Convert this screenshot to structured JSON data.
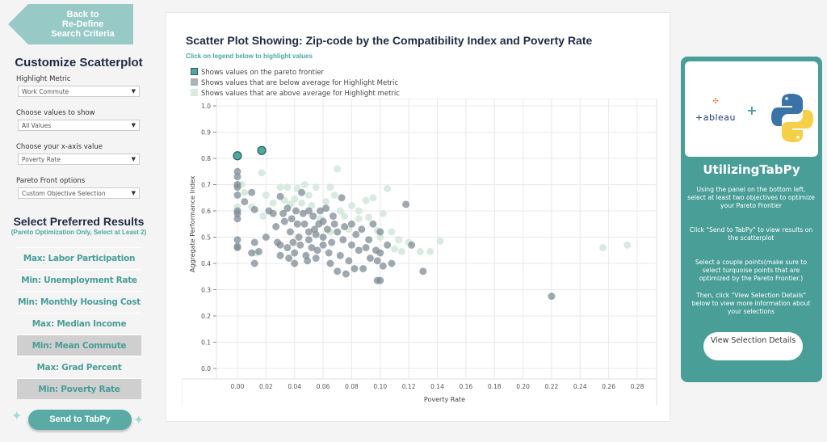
{
  "back_button": {
    "label": "Back to Re-Define Search Criteria",
    "lines": [
      "Back to",
      "Re-Define",
      "Search Criteria"
    ]
  },
  "customize": {
    "title": "Customize Scatterplot",
    "filters": [
      {
        "label": "Highlight Metric",
        "value": "Work Commute"
      },
      {
        "label": "Choose values to show",
        "value": "All Values"
      },
      {
        "label": "Choose your x-axis value",
        "value": "Poverty Rate"
      },
      {
        "label": "Pareto Front options",
        "value": "Custom Objective Selection"
      }
    ]
  },
  "preferred": {
    "title": "Select Preferred Results",
    "subtitle": "(Pareto Optimization Only, Select at Least 2)",
    "options": [
      {
        "label": "Max: Labor Participation",
        "selected": false
      },
      {
        "label": "Min: Unemployment Rate",
        "selected": false
      },
      {
        "label": "Min: Monthly Housing Cost",
        "selected": false
      },
      {
        "label": "Max: Median Income",
        "selected": false
      },
      {
        "label": "Min: Mean Commute",
        "selected": true
      },
      {
        "label": "Max: Grad Percent",
        "selected": false
      },
      {
        "label": "Min: Poverty Rate",
        "selected": true
      }
    ]
  },
  "send_button": "Send to TabPy",
  "chart": {
    "title": "Scatter Plot Showing: Zip-code by the Compatibility Index and Poverty Rate",
    "hint": "Click on legend below to highlight values",
    "legend": [
      {
        "label": "Shows values on the pareto frontier",
        "color": "#4fa8a0"
      },
      {
        "label": "Shows values that are below average for Highlight Metric",
        "color": "#a9b2b9"
      },
      {
        "label": "Shows values that are above average for Highlight metric",
        "color": "#d9ebe1"
      }
    ]
  },
  "chart_data": {
    "type": "scatter",
    "xlabel": "Poverty Rate",
    "ylabel": "Aggregate Performance Index",
    "xlim": [
      -0.015,
      0.293
    ],
    "ylim": [
      0,
      1.0
    ],
    "grid": true,
    "xticks": [
      "0.00",
      "0.02",
      "0.04",
      "0.06",
      "0.08",
      "0.10",
      "0.12",
      "0.14",
      "0.16",
      "0.18",
      "0.20",
      "0.22",
      "0.24",
      "0.26",
      "0.28"
    ],
    "yticks": [
      "0.0",
      "0.1",
      "0.2",
      "0.3",
      "0.4",
      "0.5",
      "0.6",
      "0.7",
      "0.8",
      "0.9",
      "1.0"
    ],
    "series": [
      {
        "name": "Shows values that are above average for Highlight metric",
        "color": "#cfe6da",
        "points": [
          [
            0.0,
            0.7
          ],
          [
            0.0,
            0.615
          ],
          [
            0.003,
            0.7
          ],
          [
            0.005,
            0.67
          ],
          [
            0.01,
            0.615
          ],
          [
            0.013,
            0.44
          ],
          [
            0.017,
            0.745
          ],
          [
            0.018,
            0.58
          ],
          [
            0.02,
            0.66
          ],
          [
            0.025,
            0.63
          ],
          [
            0.03,
            0.69
          ],
          [
            0.033,
            0.64
          ],
          [
            0.035,
            0.69
          ],
          [
            0.037,
            0.625
          ],
          [
            0.04,
            0.645
          ],
          [
            0.042,
            0.685
          ],
          [
            0.045,
            0.63
          ],
          [
            0.047,
            0.7
          ],
          [
            0.05,
            0.66
          ],
          [
            0.052,
            0.62
          ],
          [
            0.055,
            0.69
          ],
          [
            0.058,
            0.57
          ],
          [
            0.062,
            0.635
          ],
          [
            0.065,
            0.69
          ],
          [
            0.068,
            0.66
          ],
          [
            0.07,
            0.76
          ],
          [
            0.072,
            0.6
          ],
          [
            0.075,
            0.58
          ],
          [
            0.078,
            0.53
          ],
          [
            0.08,
            0.62
          ],
          [
            0.085,
            0.57
          ],
          [
            0.09,
            0.64
          ],
          [
            0.092,
            0.575
          ],
          [
            0.095,
            0.65
          ],
          [
            0.098,
            0.525
          ],
          [
            0.1,
            0.5
          ],
          [
            0.102,
            0.59
          ],
          [
            0.105,
            0.685
          ],
          [
            0.11,
            0.455
          ],
          [
            0.113,
            0.49
          ],
          [
            0.115,
            0.445
          ],
          [
            0.12,
            0.48
          ],
          [
            0.128,
            0.445
          ],
          [
            0.135,
            0.445
          ],
          [
            0.142,
            0.485
          ],
          [
            0.108,
            0.52
          ],
          [
            0.256,
            0.46
          ],
          [
            0.273,
            0.47
          ],
          [
            0.085,
            0.6
          ],
          [
            0.065,
            0.52
          ]
        ]
      },
      {
        "name": "Shows values that are below average for Highlight Metric",
        "color": "#7f8c94",
        "points": [
          [
            0,
            0.75
          ],
          [
            0,
            0.73
          ],
          [
            0,
            0.7
          ],
          [
            0,
            0.69
          ],
          [
            0,
            0.66
          ],
          [
            0,
            0.6
          ],
          [
            0,
            0.59
          ],
          [
            0,
            0.57
          ],
          [
            0,
            0.49
          ],
          [
            0,
            0.465
          ],
          [
            0,
            0.46
          ],
          [
            0.005,
            0.635
          ],
          [
            0.01,
            0.67
          ],
          [
            0.01,
            0.44
          ],
          [
            0.012,
            0.605
          ],
          [
            0.012,
            0.48
          ],
          [
            0.012,
            0.4
          ],
          [
            0.015,
            0.445
          ],
          [
            0.02,
            0.5
          ],
          [
            0.022,
            0.6
          ],
          [
            0.025,
            0.59
          ],
          [
            0.027,
            0.54
          ],
          [
            0.028,
            0.48
          ],
          [
            0.03,
            0.655
          ],
          [
            0.03,
            0.47
          ],
          [
            0.03,
            0.43
          ],
          [
            0.032,
            0.59
          ],
          [
            0.033,
            0.56
          ],
          [
            0.035,
            0.61
          ],
          [
            0.035,
            0.46
          ],
          [
            0.036,
            0.42
          ],
          [
            0.037,
            0.52
          ],
          [
            0.038,
            0.57
          ],
          [
            0.039,
            0.48
          ],
          [
            0.04,
            0.44
          ],
          [
            0.04,
            0.4
          ],
          [
            0.041,
            0.6
          ],
          [
            0.042,
            0.55
          ],
          [
            0.043,
            0.5
          ],
          [
            0.044,
            0.47
          ],
          [
            0.045,
            0.67
          ],
          [
            0.046,
            0.59
          ],
          [
            0.047,
            0.55
          ],
          [
            0.048,
            0.43
          ],
          [
            0.049,
            0.41
          ],
          [
            0.05,
            0.6
          ],
          [
            0.05,
            0.52
          ],
          [
            0.05,
            0.49
          ],
          [
            0.052,
            0.46
          ],
          [
            0.053,
            0.58
          ],
          [
            0.054,
            0.53
          ],
          [
            0.055,
            0.51
          ],
          [
            0.055,
            0.42
          ],
          [
            0.056,
            0.45
          ],
          [
            0.057,
            0.55
          ],
          [
            0.058,
            0.6
          ],
          [
            0.06,
            0.56
          ],
          [
            0.06,
            0.5
          ],
          [
            0.06,
            0.47
          ],
          [
            0.062,
            0.61
          ],
          [
            0.063,
            0.53
          ],
          [
            0.064,
            0.44
          ],
          [
            0.065,
            0.4
          ],
          [
            0.066,
            0.48
          ],
          [
            0.067,
            0.58
          ],
          [
            0.068,
            0.55
          ],
          [
            0.07,
            0.52
          ],
          [
            0.07,
            0.37
          ],
          [
            0.072,
            0.43
          ],
          [
            0.073,
            0.65
          ],
          [
            0.074,
            0.49
          ],
          [
            0.075,
            0.54
          ],
          [
            0.076,
            0.36
          ],
          [
            0.078,
            0.41
          ],
          [
            0.08,
            0.55
          ],
          [
            0.08,
            0.47
          ],
          [
            0.082,
            0.38
          ],
          [
            0.083,
            0.51
          ],
          [
            0.085,
            0.45
          ],
          [
            0.087,
            0.53
          ],
          [
            0.088,
            0.38
          ],
          [
            0.09,
            0.46
          ],
          [
            0.092,
            0.49
          ],
          [
            0.093,
            0.42
          ],
          [
            0.095,
            0.55
          ],
          [
            0.097,
            0.45
          ],
          [
            0.098,
            0.41
          ],
          [
            0.1,
            0.52
          ],
          [
            0.1,
            0.44
          ],
          [
            0.102,
            0.39
          ],
          [
            0.098,
            0.335
          ],
          [
            0.1,
            0.335
          ],
          [
            0.105,
            0.47
          ],
          [
            0.108,
            0.4
          ],
          [
            0.118,
            0.625
          ],
          [
            0.122,
            0.47
          ],
          [
            0.13,
            0.37
          ],
          [
            0.22,
            0.275
          ]
        ]
      },
      {
        "name": "Shows values on the pareto frontier",
        "color": "#4fa8a0",
        "points": [
          [
            0.0,
            0.81
          ],
          [
            0.017,
            0.83
          ]
        ]
      }
    ]
  },
  "right_panel": {
    "logos": {
      "tableau": "+ableau",
      "plus": "+"
    },
    "title": "UtilizingTabPy",
    "paragraphs": [
      "Using the panel on the bottom left, select at least two objectives to optimize your Pareto Frontier",
      "Click \"Send to TabPy\" to view results on the scatterplot",
      "Select a couple points(make sure to select turquoise points that are optimized by the Pareto Frontier.)",
      "Then, click \"View Selection Details\" below to view more information about your selections"
    ],
    "button": "View Selection Details"
  },
  "colors": {
    "accent": "#4a9e98",
    "navy": "#1f2a44"
  }
}
